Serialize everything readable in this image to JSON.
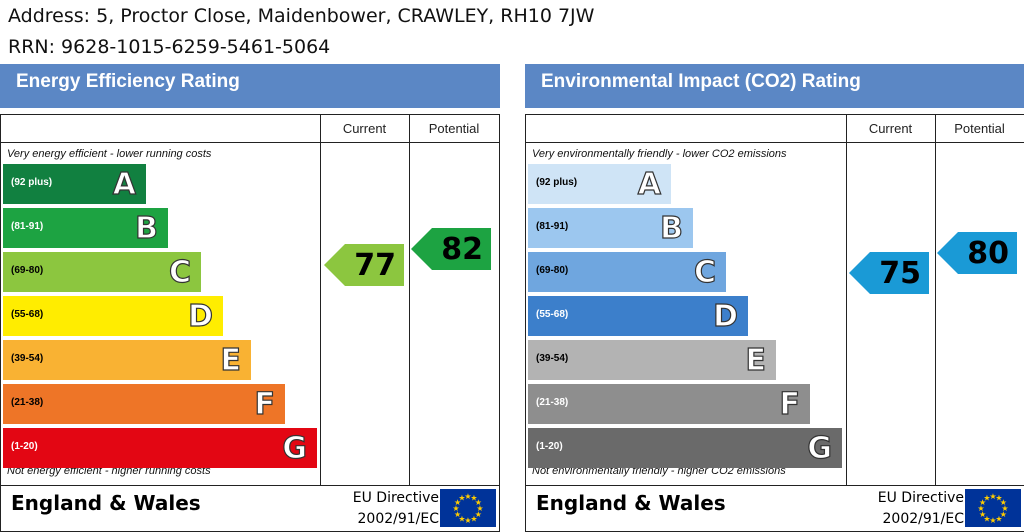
{
  "header": {
    "address": "Address: 5, Proctor Close, Maidenbower, CRAWLEY, RH10 7JW",
    "rrn": "RRN: 9628-1015-6259-5461-5064"
  },
  "columns": {
    "current": "Current",
    "potential": "Potential"
  },
  "footer": {
    "region": "England & Wales",
    "eu_line1": "EU Directive",
    "eu_line2": "2002/91/EC"
  },
  "chart_data": [
    {
      "type": "bar",
      "title": "Energy Efficiency Rating",
      "top_caption": "Very energy efficient - lower running costs",
      "bottom_caption": "Not energy efficient - higher running costs",
      "bands": [
        {
          "letter": "A",
          "range": "(92 plus)",
          "color": "#118040",
          "text_color": "#ffffff"
        },
        {
          "letter": "B",
          "range": "(81-91)",
          "color": "#1da342",
          "text_color": "#ffffff"
        },
        {
          "letter": "C",
          "range": "(69-80)",
          "color": "#8cc63f",
          "text_color": "#000000"
        },
        {
          "letter": "D",
          "range": "(55-68)",
          "color": "#ffed00",
          "text_color": "#000000"
        },
        {
          "letter": "E",
          "range": "(39-54)",
          "color": "#f9b233",
          "text_color": "#000000"
        },
        {
          "letter": "F",
          "range": "(21-38)",
          "color": "#ee7527",
          "text_color": "#000000"
        },
        {
          "letter": "G",
          "range": "(1-20)",
          "color": "#e30613",
          "text_color": "#ffffff"
        }
      ],
      "current": {
        "value": 77,
        "color": "#8cc63f"
      },
      "potential": {
        "value": 82,
        "color": "#1da342"
      }
    },
    {
      "type": "bar",
      "title": "Environmental Impact (CO2) Rating",
      "top_caption": "Very environmentally friendly - lower CO2 emissions",
      "bottom_caption": "Not environmentally friendly - higher CO2 emissions",
      "bands": [
        {
          "letter": "A",
          "range": "(92 plus)",
          "color": "#cfe4f6",
          "text_color": "#000000"
        },
        {
          "letter": "B",
          "range": "(81-91)",
          "color": "#9cc7ef",
          "text_color": "#000000"
        },
        {
          "letter": "C",
          "range": "(69-80)",
          "color": "#6fa6df",
          "text_color": "#000000"
        },
        {
          "letter": "D",
          "range": "(55-68)",
          "color": "#3c7fcb",
          "text_color": "#ffffff"
        },
        {
          "letter": "E",
          "range": "(39-54)",
          "color": "#b3b3b3",
          "text_color": "#000000"
        },
        {
          "letter": "F",
          "range": "(21-38)",
          "color": "#8e8e8e",
          "text_color": "#ffffff"
        },
        {
          "letter": "G",
          "range": "(1-20)",
          "color": "#6a6a6a",
          "text_color": "#ffffff"
        }
      ],
      "current": {
        "value": 75,
        "color": "#1a9ad6"
      },
      "potential": {
        "value": 80,
        "color": "#1a9ad6"
      }
    }
  ]
}
